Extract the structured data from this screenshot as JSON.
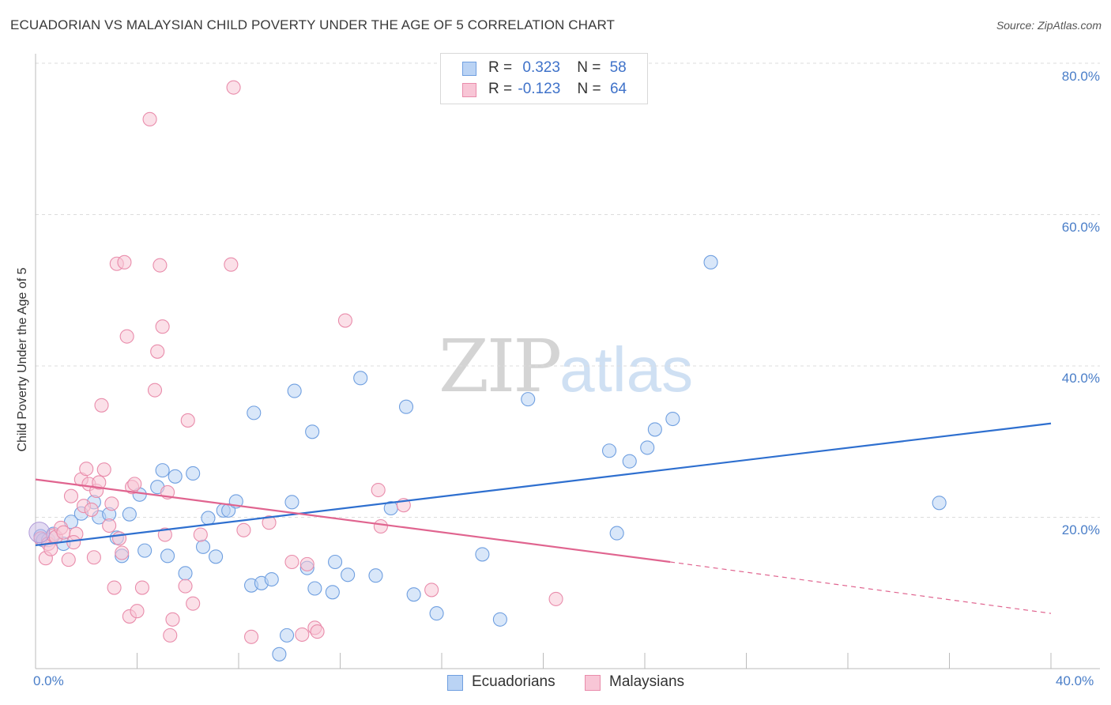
{
  "chart_data": {
    "type": "scatter",
    "title": "ECUADORIAN VS MALAYSIAN CHILD POVERTY UNDER THE AGE OF 5 CORRELATION CHART",
    "source": "Source: ZipAtlas.com",
    "ylabel": "Child Poverty Under the Age of 5",
    "xlim": [
      0,
      40
    ],
    "ylim": [
      0,
      80
    ],
    "x_ticks": [
      "0.0%",
      "40.0%"
    ],
    "y_ticks": [
      {
        "value": 20,
        "label": "20.0%"
      },
      {
        "value": 40,
        "label": "40.0%"
      },
      {
        "value": 60,
        "label": "60.0%"
      },
      {
        "value": 80,
        "label": "80.0%"
      }
    ],
    "legend": [
      {
        "r_label": "R =",
        "r_value": "0.323",
        "n_label": "N =",
        "n_value": "58"
      },
      {
        "r_label": "R =",
        "r_value": "-0.123",
        "n_label": "N =",
        "n_value": "64"
      }
    ],
    "series": [
      {
        "name": "Ecuadorians",
        "color": "#6f9fe0",
        "fill": "#bad3f4",
        "trend": {
          "x": [
            0,
            40
          ],
          "y": [
            16.3,
            32.4
          ],
          "color": "#2e6fcf"
        },
        "points": [
          [
            0.2,
            17.5
          ],
          [
            0.3,
            17.0
          ],
          [
            0.5,
            17.0
          ],
          [
            0.7,
            17.8
          ],
          [
            1.1,
            16.5
          ],
          [
            1.4,
            19.4
          ],
          [
            1.8,
            20.5
          ],
          [
            2.3,
            22.0
          ],
          [
            2.5,
            20.0
          ],
          [
            2.9,
            20.4
          ],
          [
            3.2,
            17.3
          ],
          [
            3.4,
            14.9
          ],
          [
            3.7,
            20.4
          ],
          [
            4.1,
            23.0
          ],
          [
            4.3,
            15.6
          ],
          [
            4.8,
            24.0
          ],
          [
            5.0,
            26.2
          ],
          [
            5.2,
            14.9
          ],
          [
            5.5,
            25.4
          ],
          [
            5.9,
            12.6
          ],
          [
            6.2,
            25.8
          ],
          [
            6.6,
            16.1
          ],
          [
            6.8,
            19.9
          ],
          [
            7.1,
            14.8
          ],
          [
            7.4,
            20.9
          ],
          [
            7.6,
            20.9
          ],
          [
            7.9,
            22.1
          ],
          [
            8.5,
            11.0
          ],
          [
            8.6,
            33.8
          ],
          [
            8.9,
            11.3
          ],
          [
            9.3,
            11.8
          ],
          [
            9.6,
            1.9
          ],
          [
            9.9,
            4.4
          ],
          [
            10.1,
            22.0
          ],
          [
            10.2,
            36.7
          ],
          [
            10.7,
            13.3
          ],
          [
            10.9,
            31.3
          ],
          [
            11.0,
            10.6
          ],
          [
            11.7,
            10.1
          ],
          [
            11.8,
            14.1
          ],
          [
            12.3,
            12.4
          ],
          [
            12.8,
            38.4
          ],
          [
            13.4,
            12.3
          ],
          [
            14.0,
            21.2
          ],
          [
            14.6,
            34.6
          ],
          [
            14.9,
            9.8
          ],
          [
            15.8,
            7.3
          ],
          [
            17.6,
            15.1
          ],
          [
            18.3,
            6.5
          ],
          [
            19.4,
            35.6
          ],
          [
            22.6,
            28.8
          ],
          [
            22.9,
            17.9
          ],
          [
            23.4,
            27.4
          ],
          [
            24.1,
            29.2
          ],
          [
            24.4,
            31.6
          ],
          [
            25.1,
            33.0
          ],
          [
            26.6,
            53.7
          ],
          [
            35.6,
            21.9
          ]
        ]
      },
      {
        "name": "Malaysians",
        "color": "#e98cab",
        "fill": "#f8c6d6",
        "trend": {
          "x": [
            0,
            25.0
          ],
          "y": [
            25.0,
            14.1
          ],
          "color": "#e0648f"
        },
        "trend_dashed": {
          "x": [
            25.0,
            40
          ],
          "y": [
            14.1,
            7.3
          ]
        },
        "points": [
          [
            0.2,
            17.2
          ],
          [
            0.4,
            14.6
          ],
          [
            0.5,
            16.5
          ],
          [
            0.6,
            15.8
          ],
          [
            0.7,
            17.6
          ],
          [
            0.8,
            17.4
          ],
          [
            1.0,
            18.6
          ],
          [
            1.1,
            18.0
          ],
          [
            1.3,
            14.4
          ],
          [
            1.4,
            22.8
          ],
          [
            1.6,
            17.8
          ],
          [
            1.8,
            25.0
          ],
          [
            1.9,
            21.5
          ],
          [
            2.0,
            26.4
          ],
          [
            2.1,
            24.4
          ],
          [
            2.2,
            21.0
          ],
          [
            2.3,
            14.7
          ],
          [
            2.4,
            23.5
          ],
          [
            2.5,
            24.6
          ],
          [
            2.6,
            34.8
          ],
          [
            2.7,
            26.3
          ],
          [
            2.9,
            18.9
          ],
          [
            3.0,
            21.8
          ],
          [
            3.1,
            10.7
          ],
          [
            3.2,
            53.5
          ],
          [
            3.4,
            15.3
          ],
          [
            3.5,
            53.7
          ],
          [
            3.6,
            43.9
          ],
          [
            3.7,
            6.9
          ],
          [
            3.8,
            24.0
          ],
          [
            3.9,
            24.4
          ],
          [
            4.0,
            7.6
          ],
          [
            4.2,
            10.7
          ],
          [
            4.5,
            72.6
          ],
          [
            4.7,
            36.8
          ],
          [
            4.8,
            41.9
          ],
          [
            4.9,
            53.3
          ],
          [
            5.0,
            45.2
          ],
          [
            5.1,
            17.7
          ],
          [
            5.2,
            23.3
          ],
          [
            5.3,
            4.4
          ],
          [
            5.4,
            6.5
          ],
          [
            5.9,
            10.9
          ],
          [
            6.0,
            32.8
          ],
          [
            6.2,
            8.6
          ],
          [
            6.5,
            17.7
          ],
          [
            7.7,
            53.4
          ],
          [
            7.8,
            76.8
          ],
          [
            8.2,
            18.3
          ],
          [
            8.5,
            4.2
          ],
          [
            9.2,
            19.3
          ],
          [
            10.1,
            14.1
          ],
          [
            10.5,
            4.5
          ],
          [
            10.7,
            13.8
          ],
          [
            11.0,
            5.4
          ],
          [
            11.1,
            4.9
          ],
          [
            13.5,
            23.6
          ],
          [
            13.6,
            18.8
          ],
          [
            14.5,
            21.6
          ],
          [
            15.6,
            10.4
          ],
          [
            20.5,
            9.2
          ],
          [
            12.2,
            46.0
          ],
          [
            3.3,
            17.2
          ],
          [
            1.5,
            16.7
          ]
        ]
      }
    ],
    "watermark": {
      "zip": "ZIP",
      "atlas": "atlas"
    }
  },
  "bottom_legend": [
    "Ecuadorians",
    "Malaysians"
  ]
}
